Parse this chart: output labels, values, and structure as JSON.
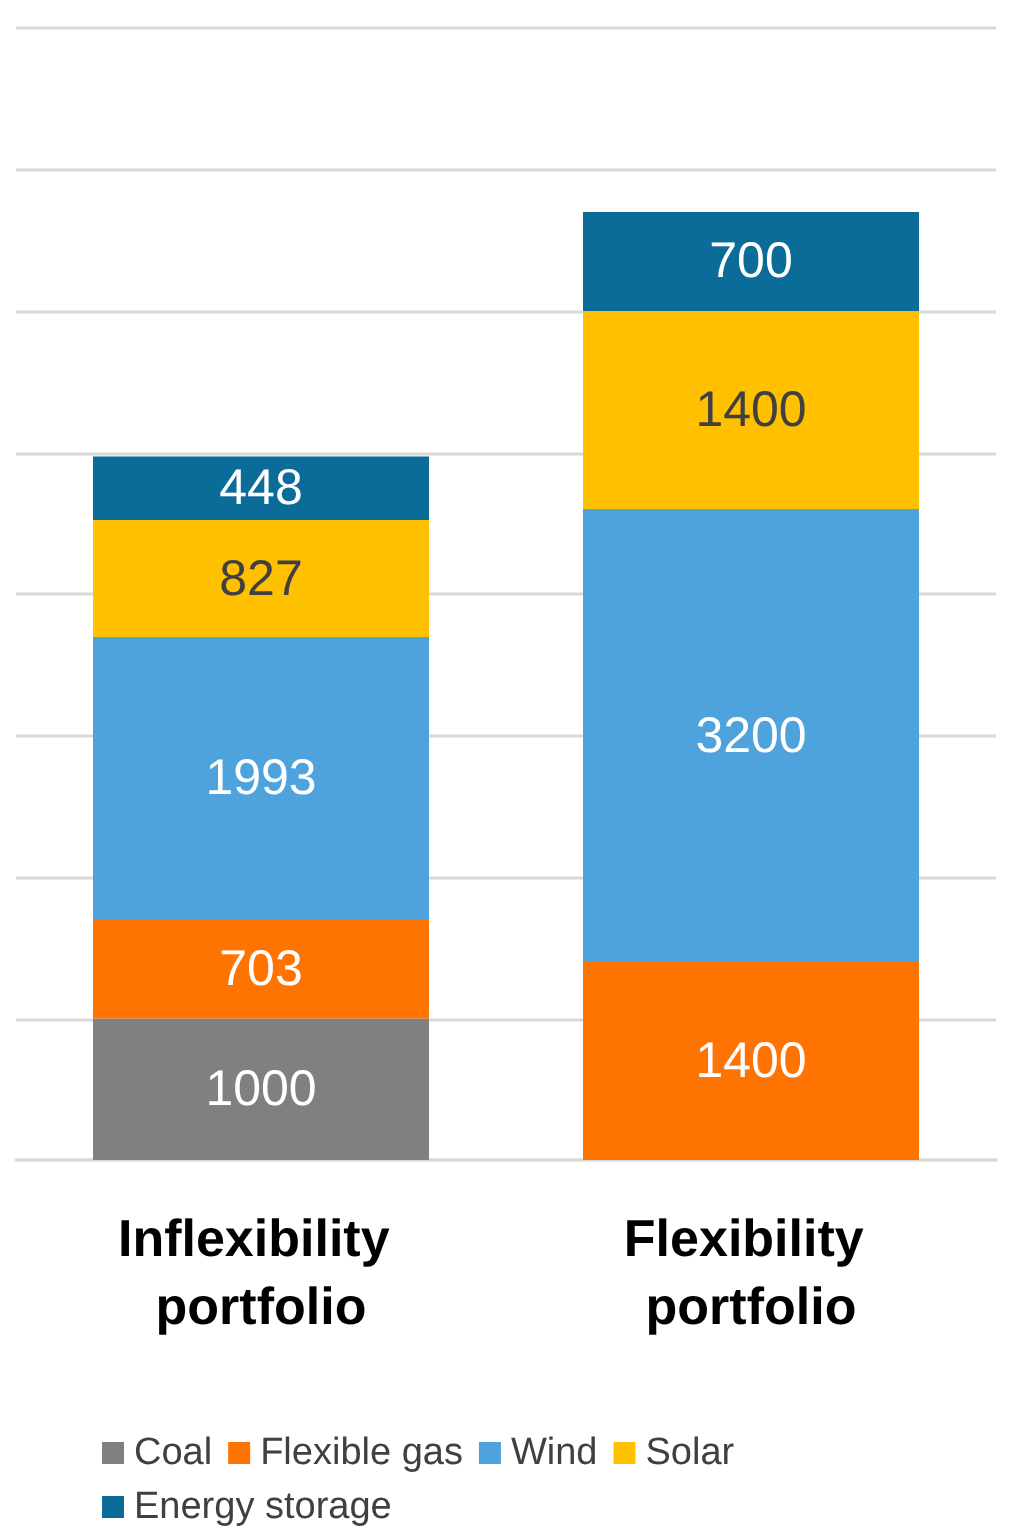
{
  "chart_data": {
    "type": "bar",
    "stacked": true,
    "categories": [
      "Inflexibility portfolio",
      "Flexibility portfolio"
    ],
    "series": [
      {
        "name": "Coal",
        "color": "#808080",
        "values": [
          1000,
          null
        ]
      },
      {
        "name": "Flexible gas",
        "color": "#ff7300",
        "values": [
          703,
          1400
        ]
      },
      {
        "name": "Wind",
        "color": "#4fa3dc",
        "values": [
          1993,
          3200
        ]
      },
      {
        "name": "Solar",
        "color": "#ffc000",
        "values": [
          827,
          1400
        ]
      },
      {
        "name": "Energy storage",
        "color": "#0b6b99",
        "values": [
          448,
          700
        ]
      }
    ],
    "ylim": [
      0,
      8000
    ],
    "yticks": [
      {
        "value": 0,
        "label": null
      },
      {
        "value": 1000,
        "label": null
      },
      {
        "value": 2000,
        "label": null
      },
      {
        "value": 3000,
        "label": null
      },
      {
        "value": 4000,
        "label": null
      },
      {
        "value": 5000,
        "label": null
      },
      {
        "value": 6000,
        "label": null
      },
      {
        "value": 7000,
        "label": null
      },
      {
        "value": 8000,
        "label": null
      }
    ],
    "tick_labels": "x",
    "grid": "y",
    "legend": "bottom",
    "data_labels": true
  }
}
